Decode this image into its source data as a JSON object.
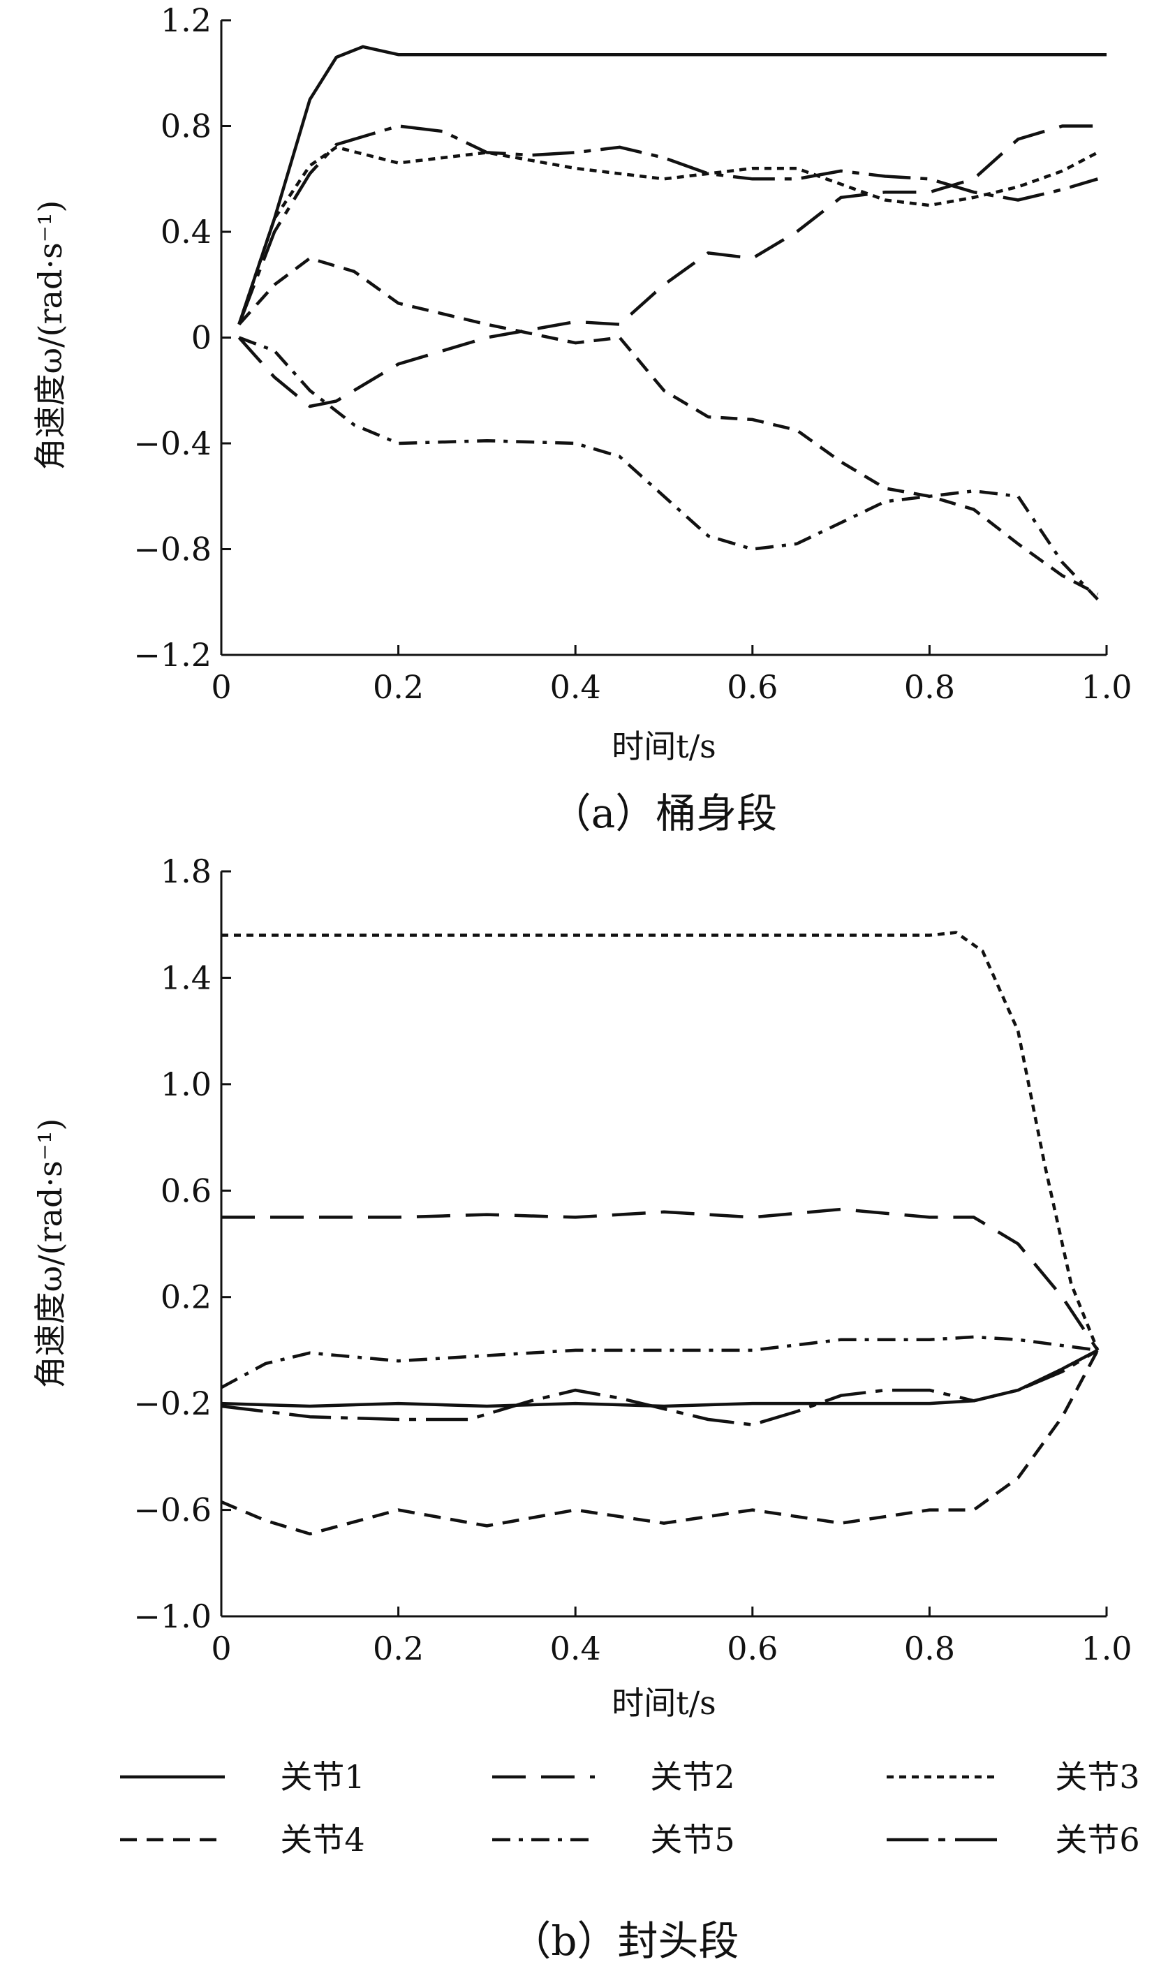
{
  "chart_data": [
    {
      "type": "line",
      "caption": "（a）桶身段",
      "xlabel": "时间t/s",
      "ylabel": "角速度ω/(rad·s⁻¹)",
      "xlim": [
        0,
        1.0
      ],
      "ylim": [
        -1.2,
        1.2
      ],
      "xticks": [
        0,
        0.2,
        0.4,
        0.6,
        0.8,
        1.0
      ],
      "xtick_labels": [
        "0",
        "0.2",
        "0.4",
        "0.6",
        "0.8",
        "1.0"
      ],
      "yticks": [
        -1.2,
        -0.8,
        -0.4,
        0,
        0.4,
        0.8,
        1.2
      ],
      "ytick_labels": [
        "−1.2",
        "−0.8",
        "−0.4",
        "0",
        "0.4",
        "0.8",
        "1.2"
      ],
      "series": [
        {
          "name": "关节1",
          "style": "solid",
          "points": [
            [
              0.02,
              0.05
            ],
            [
              0.06,
              0.45
            ],
            [
              0.1,
              0.9
            ],
            [
              0.13,
              1.06
            ],
            [
              0.16,
              1.1
            ],
            [
              0.2,
              1.07
            ],
            [
              0.4,
              1.07
            ],
            [
              0.6,
              1.07
            ],
            [
              0.8,
              1.07
            ],
            [
              1.0,
              1.07
            ]
          ]
        },
        {
          "name": "关节2",
          "style": "longdash",
          "points": [
            [
              0.02,
              0.0
            ],
            [
              0.06,
              -0.15
            ],
            [
              0.1,
              -0.26
            ],
            [
              0.13,
              -0.24
            ],
            [
              0.2,
              -0.1
            ],
            [
              0.3,
              0.0
            ],
            [
              0.4,
              0.06
            ],
            [
              0.45,
              0.05
            ],
            [
              0.5,
              0.2
            ],
            [
              0.55,
              0.32
            ],
            [
              0.6,
              0.3
            ],
            [
              0.65,
              0.4
            ],
            [
              0.7,
              0.53
            ],
            [
              0.75,
              0.55
            ],
            [
              0.8,
              0.55
            ],
            [
              0.85,
              0.6
            ],
            [
              0.9,
              0.75
            ],
            [
              0.95,
              0.8
            ],
            [
              0.99,
              0.8
            ]
          ]
        },
        {
          "name": "关节3",
          "style": "dotted",
          "points": [
            [
              0.02,
              0.05
            ],
            [
              0.06,
              0.45
            ],
            [
              0.1,
              0.65
            ],
            [
              0.13,
              0.72
            ],
            [
              0.2,
              0.66
            ],
            [
              0.3,
              0.7
            ],
            [
              0.4,
              0.64
            ],
            [
              0.5,
              0.6
            ],
            [
              0.6,
              0.64
            ],
            [
              0.65,
              0.64
            ],
            [
              0.7,
              0.58
            ],
            [
              0.75,
              0.52
            ],
            [
              0.8,
              0.5
            ],
            [
              0.85,
              0.53
            ],
            [
              0.9,
              0.57
            ],
            [
              0.95,
              0.63
            ],
            [
              0.99,
              0.7
            ]
          ]
        },
        {
          "name": "关节4",
          "style": "dashed",
          "points": [
            [
              0.02,
              0.05
            ],
            [
              0.06,
              0.2
            ],
            [
              0.1,
              0.3
            ],
            [
              0.15,
              0.25
            ],
            [
              0.2,
              0.13
            ],
            [
              0.3,
              0.05
            ],
            [
              0.4,
              -0.02
            ],
            [
              0.45,
              0.0
            ],
            [
              0.5,
              -0.2
            ],
            [
              0.55,
              -0.3
            ],
            [
              0.6,
              -0.31
            ],
            [
              0.65,
              -0.35
            ],
            [
              0.7,
              -0.47
            ],
            [
              0.75,
              -0.57
            ],
            [
              0.8,
              -0.6
            ],
            [
              0.85,
              -0.65
            ],
            [
              0.9,
              -0.78
            ],
            [
              0.95,
              -0.9
            ],
            [
              0.99,
              -0.97
            ]
          ]
        },
        {
          "name": "关节5",
          "style": "dashdot",
          "points": [
            [
              0.02,
              0.0
            ],
            [
              0.06,
              -0.05
            ],
            [
              0.1,
              -0.2
            ],
            [
              0.15,
              -0.33
            ],
            [
              0.2,
              -0.4
            ],
            [
              0.3,
              -0.39
            ],
            [
              0.4,
              -0.4
            ],
            [
              0.45,
              -0.45
            ],
            [
              0.5,
              -0.6
            ],
            [
              0.55,
              -0.75
            ],
            [
              0.6,
              -0.8
            ],
            [
              0.65,
              -0.78
            ],
            [
              0.7,
              -0.7
            ],
            [
              0.75,
              -0.62
            ],
            [
              0.8,
              -0.6
            ],
            [
              0.85,
              -0.58
            ],
            [
              0.9,
              -0.6
            ],
            [
              0.95,
              -0.85
            ],
            [
              0.99,
              -0.99
            ]
          ]
        },
        {
          "name": "关节6",
          "style": "longdashdot",
          "points": [
            [
              0.02,
              0.05
            ],
            [
              0.06,
              0.4
            ],
            [
              0.1,
              0.62
            ],
            [
              0.13,
              0.73
            ],
            [
              0.2,
              0.8
            ],
            [
              0.25,
              0.78
            ],
            [
              0.3,
              0.7
            ],
            [
              0.35,
              0.69
            ],
            [
              0.4,
              0.7
            ],
            [
              0.45,
              0.72
            ],
            [
              0.5,
              0.68
            ],
            [
              0.55,
              0.62
            ],
            [
              0.6,
              0.6
            ],
            [
              0.65,
              0.6
            ],
            [
              0.7,
              0.63
            ],
            [
              0.75,
              0.61
            ],
            [
              0.8,
              0.6
            ],
            [
              0.85,
              0.55
            ],
            [
              0.9,
              0.52
            ],
            [
              0.95,
              0.56
            ],
            [
              0.99,
              0.6
            ]
          ]
        }
      ]
    },
    {
      "type": "line",
      "caption": "（b）封头段",
      "xlabel": "时间t/s",
      "ylabel": "角速度ω/(rad·s⁻¹)",
      "xlim": [
        0,
        1.0
      ],
      "ylim": [
        -1.0,
        1.8
      ],
      "xticks": [
        0,
        0.2,
        0.4,
        0.6,
        0.8,
        1.0
      ],
      "xtick_labels": [
        "0",
        "0.2",
        "0.4",
        "0.6",
        "0.8",
        "1.0"
      ],
      "yticks": [
        -1.0,
        -0.6,
        -0.2,
        0.2,
        0.6,
        1.0,
        1.4,
        1.8
      ],
      "ytick_labels": [
        "−1.0",
        "−0.6",
        "−0.2",
        "0.2",
        "0.6",
        "1.0",
        "1.4",
        "1.8"
      ],
      "series": [
        {
          "name": "关节1",
          "style": "solid",
          "points": [
            [
              0.0,
              -0.2
            ],
            [
              0.1,
              -0.21
            ],
            [
              0.2,
              -0.2
            ],
            [
              0.3,
              -0.21
            ],
            [
              0.4,
              -0.2
            ],
            [
              0.5,
              -0.21
            ],
            [
              0.6,
              -0.2
            ],
            [
              0.7,
              -0.2
            ],
            [
              0.8,
              -0.2
            ],
            [
              0.85,
              -0.19
            ],
            [
              0.9,
              -0.15
            ],
            [
              0.95,
              -0.07
            ],
            [
              0.99,
              0.0
            ]
          ]
        },
        {
          "name": "关节2",
          "style": "longdash",
          "points": [
            [
              0.0,
              0.5
            ],
            [
              0.2,
              0.5
            ],
            [
              0.3,
              0.51
            ],
            [
              0.4,
              0.5
            ],
            [
              0.5,
              0.52
            ],
            [
              0.6,
              0.5
            ],
            [
              0.7,
              0.53
            ],
            [
              0.8,
              0.5
            ],
            [
              0.85,
              0.5
            ],
            [
              0.9,
              0.4
            ],
            [
              0.95,
              0.2
            ],
            [
              0.99,
              0.0
            ]
          ]
        },
        {
          "name": "关节3",
          "style": "dotted",
          "points": [
            [
              0.0,
              1.56
            ],
            [
              0.2,
              1.56
            ],
            [
              0.4,
              1.56
            ],
            [
              0.6,
              1.56
            ],
            [
              0.8,
              1.56
            ],
            [
              0.83,
              1.57
            ],
            [
              0.86,
              1.5
            ],
            [
              0.9,
              1.2
            ],
            [
              0.93,
              0.7
            ],
            [
              0.96,
              0.25
            ],
            [
              0.99,
              0.0
            ]
          ]
        },
        {
          "name": "关节4",
          "style": "dashed",
          "points": [
            [
              0.0,
              -0.57
            ],
            [
              0.05,
              -0.64
            ],
            [
              0.1,
              -0.69
            ],
            [
              0.2,
              -0.6
            ],
            [
              0.3,
              -0.66
            ],
            [
              0.4,
              -0.6
            ],
            [
              0.5,
              -0.65
            ],
            [
              0.6,
              -0.6
            ],
            [
              0.7,
              -0.65
            ],
            [
              0.8,
              -0.6
            ],
            [
              0.85,
              -0.6
            ],
            [
              0.9,
              -0.48
            ],
            [
              0.95,
              -0.25
            ],
            [
              0.99,
              0.0
            ]
          ]
        },
        {
          "name": "关节5",
          "style": "dashdot",
          "points": [
            [
              0.0,
              -0.14
            ],
            [
              0.05,
              -0.05
            ],
            [
              0.1,
              -0.01
            ],
            [
              0.2,
              -0.04
            ],
            [
              0.3,
              -0.02
            ],
            [
              0.4,
              0.0
            ],
            [
              0.5,
              0.0
            ],
            [
              0.6,
              0.0
            ],
            [
              0.7,
              0.04
            ],
            [
              0.8,
              0.04
            ],
            [
              0.85,
              0.05
            ],
            [
              0.9,
              0.04
            ],
            [
              0.99,
              0.0
            ]
          ]
        },
        {
          "name": "关节6",
          "style": "longdashdot",
          "points": [
            [
              0.0,
              -0.21
            ],
            [
              0.05,
              -0.23
            ],
            [
              0.1,
              -0.25
            ],
            [
              0.2,
              -0.26
            ],
            [
              0.28,
              -0.26
            ],
            [
              0.35,
              -0.19
            ],
            [
              0.4,
              -0.15
            ],
            [
              0.45,
              -0.18
            ],
            [
              0.5,
              -0.22
            ],
            [
              0.55,
              -0.26
            ],
            [
              0.6,
              -0.28
            ],
            [
              0.65,
              -0.23
            ],
            [
              0.7,
              -0.17
            ],
            [
              0.75,
              -0.15
            ],
            [
              0.8,
              -0.15
            ],
            [
              0.85,
              -0.19
            ],
            [
              0.9,
              -0.15
            ],
            [
              0.95,
              -0.08
            ],
            [
              0.99,
              0.0
            ]
          ]
        }
      ]
    }
  ],
  "legend": {
    "placement": "bottom",
    "items": [
      {
        "label": "关节1",
        "style": "solid"
      },
      {
        "label": "关节2",
        "style": "longdash"
      },
      {
        "label": "关节3",
        "style": "dotted"
      },
      {
        "label": "关节4",
        "style": "dashed"
      },
      {
        "label": "关节5",
        "style": "dashdot"
      },
      {
        "label": "关节6",
        "style": "longdashdot"
      }
    ]
  }
}
